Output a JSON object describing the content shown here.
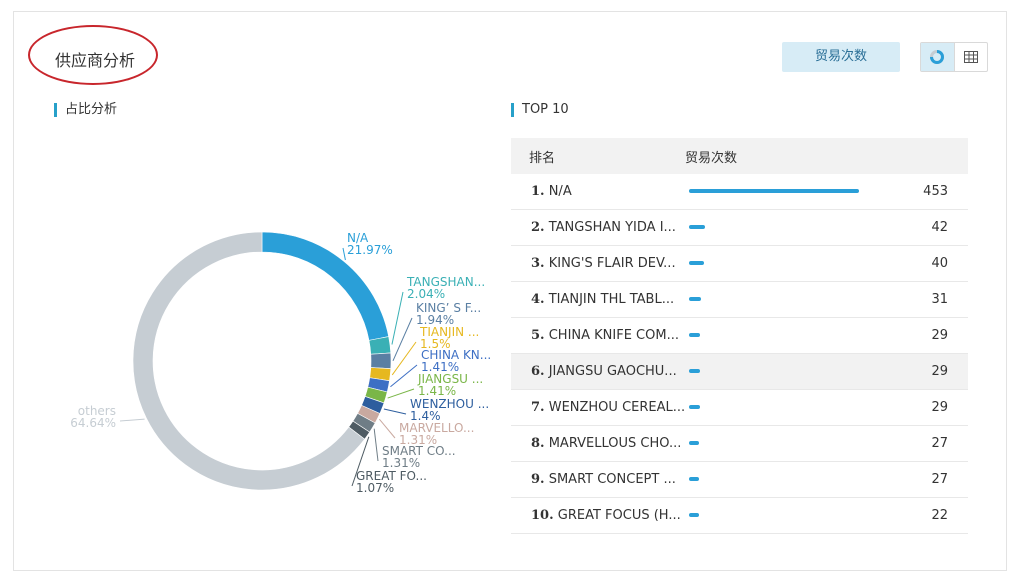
{
  "page_title": "供应商分析",
  "metric_button": "贸易次数",
  "view_toggle": {
    "chart_icon": "donut-chart-icon",
    "table_icon": "table-icon"
  },
  "left_section_title": "占比分析",
  "right_section_title": "TOP 10",
  "colors": {
    "accent": "#27a0c9",
    "bar": "#2a9fd8",
    "highlight_ring": "#c8262c"
  },
  "chart_data": [
    {
      "type": "pie",
      "variant": "donut",
      "slices": [
        {
          "name": "N/A",
          "label": "N/A",
          "pct_label": "21.97%",
          "value": 21.97,
          "color": "#2a9fd8"
        },
        {
          "name": "TANGSHAN...",
          "label": "TANGSHAN...",
          "pct_label": "2.04%",
          "value": 2.04,
          "color": "#3ab0b5"
        },
        {
          "name": "KING’S F...",
          "label": "KING’ S F...",
          "pct_label": "1.94%",
          "value": 1.94,
          "color": "#5a7fa3"
        },
        {
          "name": "TIANJIN ...",
          "label": "TIANJIN ...",
          "pct_label": "1.5%",
          "value": 1.5,
          "color": "#e6b820"
        },
        {
          "name": "CHINA KN...",
          "label": "CHINA KN...",
          "pct_label": "1.41%",
          "value": 1.41,
          "color": "#3d6fc4"
        },
        {
          "name": "JIANGSU ...",
          "label": "JIANGSU ...",
          "pct_label": "1.41%",
          "value": 1.41,
          "color": "#7ab648"
        },
        {
          "name": "WENZHOU ...",
          "label": "WENZHOU ...",
          "pct_label": "1.4%",
          "value": 1.4,
          "color": "#2d5e9e"
        },
        {
          "name": "MARVELLO...",
          "label": "MARVELLO...",
          "pct_label": "1.31%",
          "value": 1.31,
          "color": "#c9a9a0"
        },
        {
          "name": "SMART CO...",
          "label": "SMART CO...",
          "pct_label": "1.31%",
          "value": 1.31,
          "color": "#6f7d86"
        },
        {
          "name": "GREAT FO...",
          "label": "GREAT FO...",
          "pct_label": "1.07%",
          "value": 1.07,
          "color": "#4e5b63"
        },
        {
          "name": "others",
          "label": "others",
          "pct_label": "64.64%",
          "value": 64.64,
          "color": "#c6cdd3"
        }
      ]
    },
    {
      "type": "bar",
      "orientation": "horizontal",
      "columns": [
        "排名",
        "贸易次数"
      ],
      "categories": [
        "N/A",
        "TANGSHAN YIDA I...",
        "KING'S FLAIR DEV...",
        "TIANJIN THL TABL...",
        "CHINA KNIFE COM...",
        "JIANGSU GAOCHU...",
        "WENZHOU CEREAL...",
        "MARVELLOUS CHO...",
        "SMART CONCEPT ...",
        "GREAT FOCUS (H..."
      ],
      "ranks": [
        "1.",
        "2.",
        "3.",
        "4.",
        "5.",
        "6.",
        "7.",
        "8.",
        "9.",
        "10."
      ],
      "values": [
        453,
        42,
        40,
        31,
        29,
        29,
        29,
        27,
        27,
        22
      ],
      "max": 453
    }
  ]
}
